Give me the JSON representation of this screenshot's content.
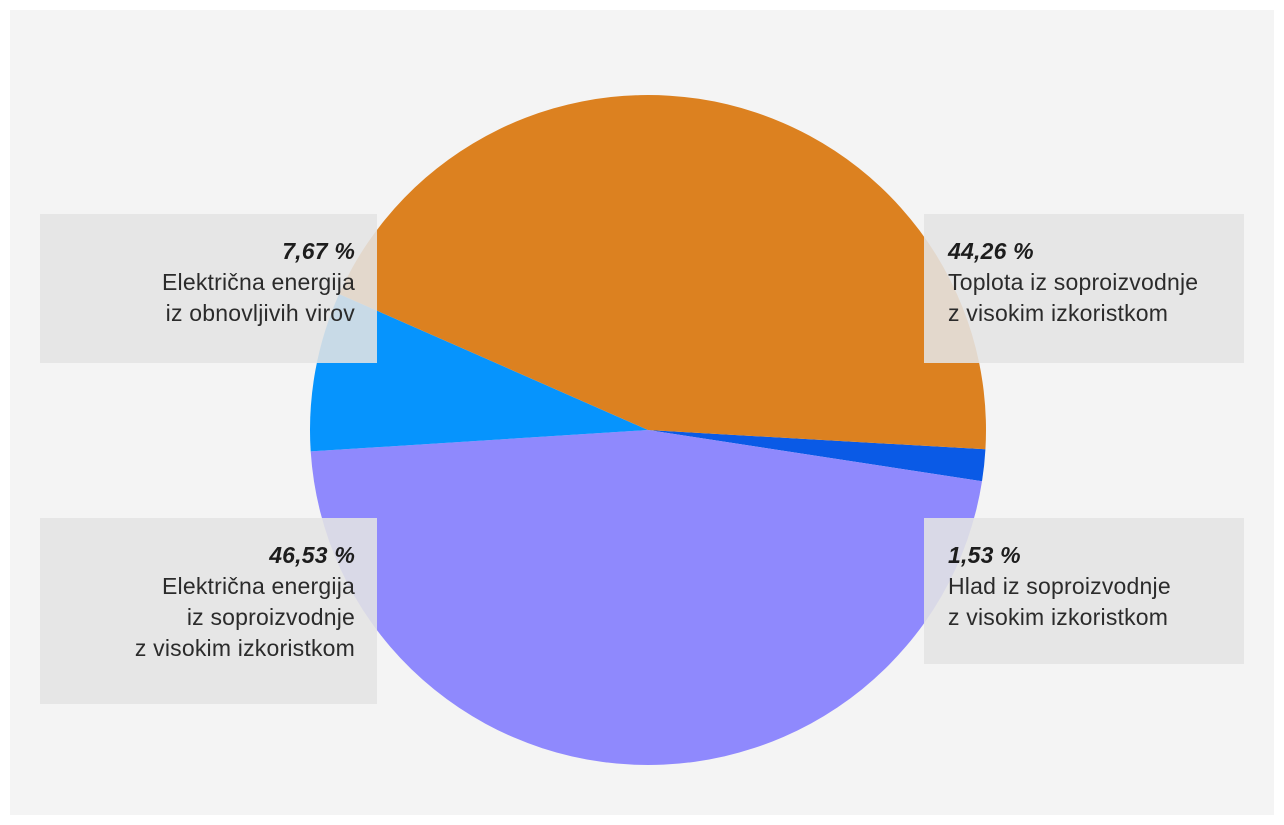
{
  "chart_data": {
    "type": "pie",
    "slices": [
      {
        "value": 44.26,
        "pct_label": "44,26 %",
        "label_lines": [
          "Toplota iz soproizvodnje",
          "z visokim izkoristkom"
        ],
        "color": "#dc8120"
      },
      {
        "value": 1.53,
        "pct_label": "1,53 %",
        "label_lines": [
          "Hlad iz soproizvodnje",
          "z visokim izkoristkom"
        ],
        "color": "#0a5ae6"
      },
      {
        "value": 46.53,
        "pct_label": "46,53 %",
        "label_lines": [
          "Električna energija",
          "iz soproizvodnje",
          "z visokim izkoristkom"
        ],
        "color": "#8f89fd"
      },
      {
        "value": 7.67,
        "pct_label": "7,67 %",
        "label_lines": [
          "Električna energija",
          "iz obnovljivih virov"
        ],
        "color": "#0694fd"
      }
    ]
  }
}
